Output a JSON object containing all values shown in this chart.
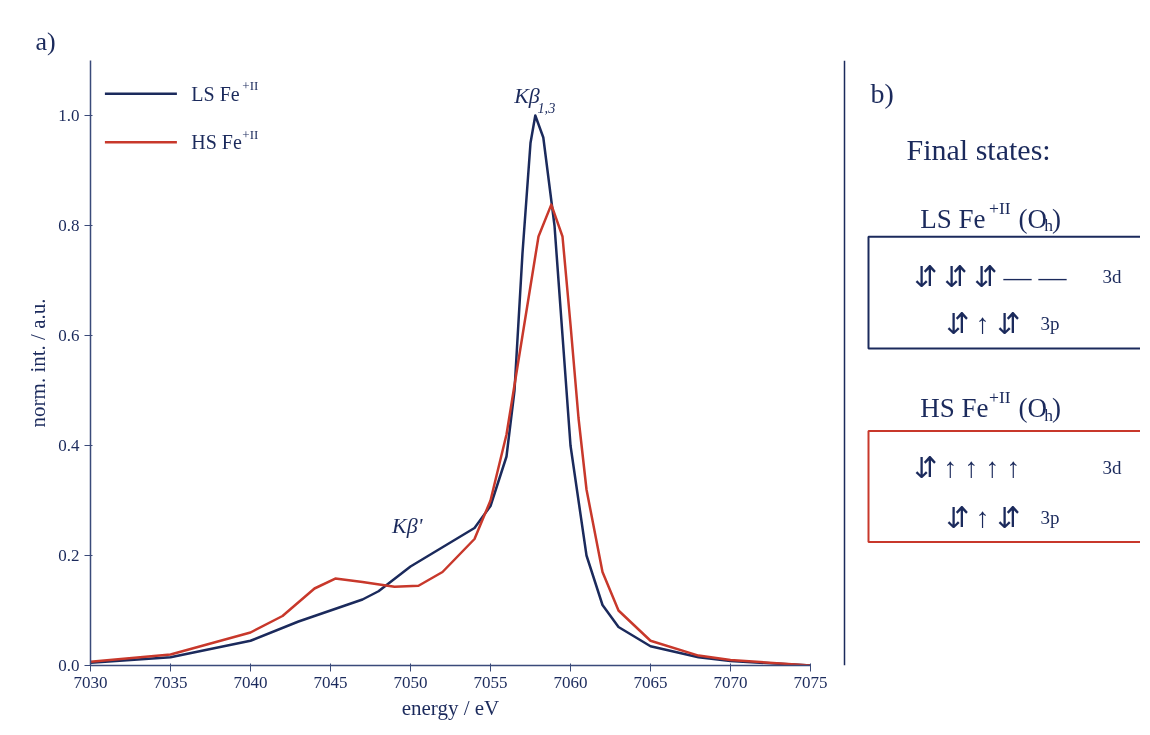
{
  "chart_data": [
    {
      "type": "line",
      "xlabel": "energy / eV",
      "ylabel": "norm. int. / a.u.",
      "xlim": [
        7030,
        7075
      ],
      "ylim": [
        0,
        1.1
      ],
      "xticks": [
        7030,
        7035,
        7040,
        7045,
        7050,
        7055,
        7060,
        7065,
        7070,
        7075
      ],
      "yticks": [
        {
          "value": 0,
          "label": "0.0"
        },
        {
          "value": 0.2,
          "label": "0.2"
        },
        {
          "value": 0.4,
          "label": "0.4"
        },
        {
          "value": 0.6,
          "label": "0.6"
        },
        {
          "value": 0.8,
          "label": "0.8"
        },
        {
          "value": 1.0,
          "label": "1.0"
        }
      ],
      "legend": "top left",
      "grid": false,
      "line_style": "solid",
      "marker": "none",
      "annotations": [
        "a)",
        {
          "text": "Kβ$_{1,3}$",
          "x": 7057.8,
          "y": 1.0
        },
        "Kβ'"
      ],
      "series": [
        {
          "name": "LS Fe$^{+II}$",
          "color": "#1b2a5c",
          "x": [
            7030,
            7035,
            7040,
            7043,
            7045,
            7047,
            7048,
            7050,
            7052,
            7054,
            7055,
            7056,
            7056.5,
            7057,
            7057.5,
            7057.8,
            7058.3,
            7059,
            7059.5,
            7060,
            7061,
            7062,
            7063,
            7065,
            7068,
            7070,
            7075
          ],
          "values": [
            0.005,
            0.015,
            0.045,
            0.08,
            0.1,
            0.12,
            0.135,
            0.18,
            0.215,
            0.25,
            0.29,
            0.38,
            0.5,
            0.75,
            0.95,
            1.0,
            0.96,
            0.8,
            0.6,
            0.4,
            0.2,
            0.11,
            0.07,
            0.035,
            0.015,
            0.008,
            0.0
          ]
        },
        {
          "name": "HS Fe$^{+II}$",
          "color": "#c8382b",
          "x": [
            7030,
            7035,
            7040,
            7042,
            7044,
            7045.3,
            7047,
            7049,
            7050.5,
            7052,
            7054,
            7055,
            7056,
            7057,
            7058,
            7058.8,
            7059.5,
            7060,
            7060.5,
            7061,
            7062,
            7063,
            7065,
            7068,
            7070,
            7075
          ],
          "values": [
            0.007,
            0.02,
            0.06,
            0.09,
            0.14,
            0.158,
            0.152,
            0.143,
            0.145,
            0.17,
            0.23,
            0.3,
            0.42,
            0.6,
            0.78,
            0.838,
            0.78,
            0.62,
            0.45,
            0.32,
            0.17,
            0.1,
            0.045,
            0.018,
            0.01,
            0.0
          ]
        }
      ]
    },
    {
      "type": "other",
      "title": "Final states:",
      "colors": [
        "#1b2a5c",
        "#c8382b"
      ],
      "annotations": [
        "b)",
        "LS Fe$^{+II}$(O$_{h}$)",
        "⇵ ⇵ ⇵ — —",
        "3d",
        "⇵ ↑ ⇵",
        "3p",
        "HS Fe$^{+II}$(O$_{h}$)",
        "⇵ ↑ ↑ ↑ ↑",
        "3d",
        "⇵ ↑ ⇵",
        "3p"
      ]
    }
  ]
}
